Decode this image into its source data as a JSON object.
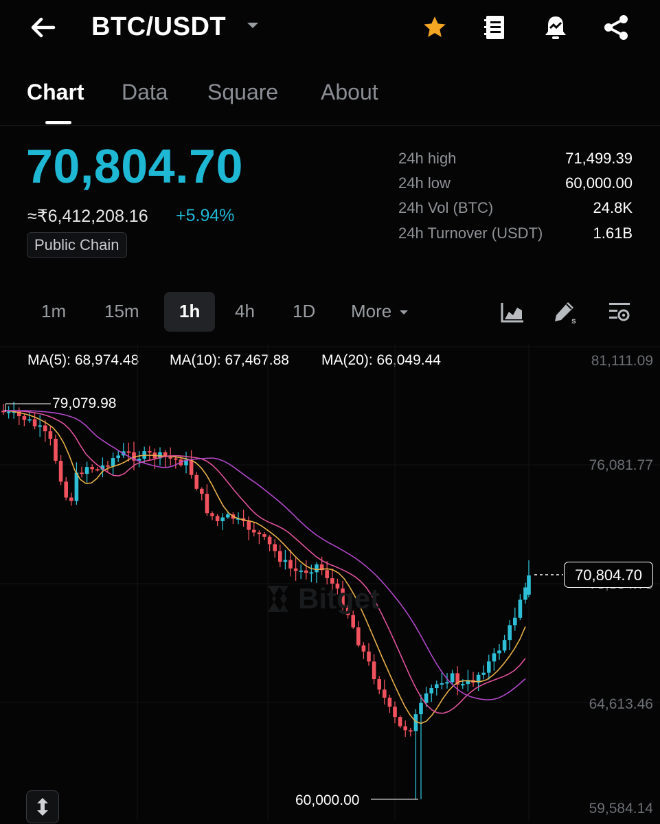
{
  "header": {
    "pair": "BTC/USDT"
  },
  "tabs": [
    {
      "label": "Chart",
      "active": true
    },
    {
      "label": "Data",
      "active": false
    },
    {
      "label": "Square",
      "active": false
    },
    {
      "label": "About",
      "active": false
    }
  ],
  "price": {
    "last": "70,804.70",
    "fiat": "≈₹6,412,208.16",
    "change": "+5.94%",
    "tag": "Public Chain"
  },
  "stats": [
    {
      "label": "24h high",
      "value": "71,499.39"
    },
    {
      "label": "24h low",
      "value": "60,000.00"
    },
    {
      "label": "24h Vol (BTC)",
      "value": "24.8K"
    },
    {
      "label": "24h Turnover (USDT)",
      "value": "1.61B"
    }
  ],
  "intervals": [
    {
      "label": "1m",
      "active": false
    },
    {
      "label": "15m",
      "active": false
    },
    {
      "label": "1h",
      "active": true
    },
    {
      "label": "4h",
      "active": false
    },
    {
      "label": "1D",
      "active": false
    }
  ],
  "more_label": "More",
  "ma": [
    {
      "label": "MA(5): 68,974.48",
      "color": "#e8b04a"
    },
    {
      "label": "MA(10): 67,467.88",
      "color": "#e0529c"
    },
    {
      "label": "MA(20): 66,049.44",
      "color": "#b048c8"
    }
  ],
  "chart_data": {
    "type": "candlestick",
    "y_axis_ticks": [
      "81,111.09",
      "76,081.77",
      "70,804.70",
      "64,613.46",
      "59,584.14"
    ],
    "high_marker": "79,079.98",
    "low_marker": "60,000.00",
    "current_price": "70,804.70",
    "ylim": [
      59584.14,
      81111.09
    ],
    "watermark": "Bitget",
    "colors": {
      "up": "#2ebfd6",
      "down": "#f0525e"
    }
  },
  "icons": {
    "back": "back-arrow-icon",
    "favorite": "star-icon",
    "notes": "document-icon",
    "alert": "bell-icon",
    "share": "share-icon",
    "indicator": "area-chart-icon",
    "draw": "pen-icon",
    "settings": "chart-settings-icon",
    "scale": "vertical-resize-icon"
  }
}
